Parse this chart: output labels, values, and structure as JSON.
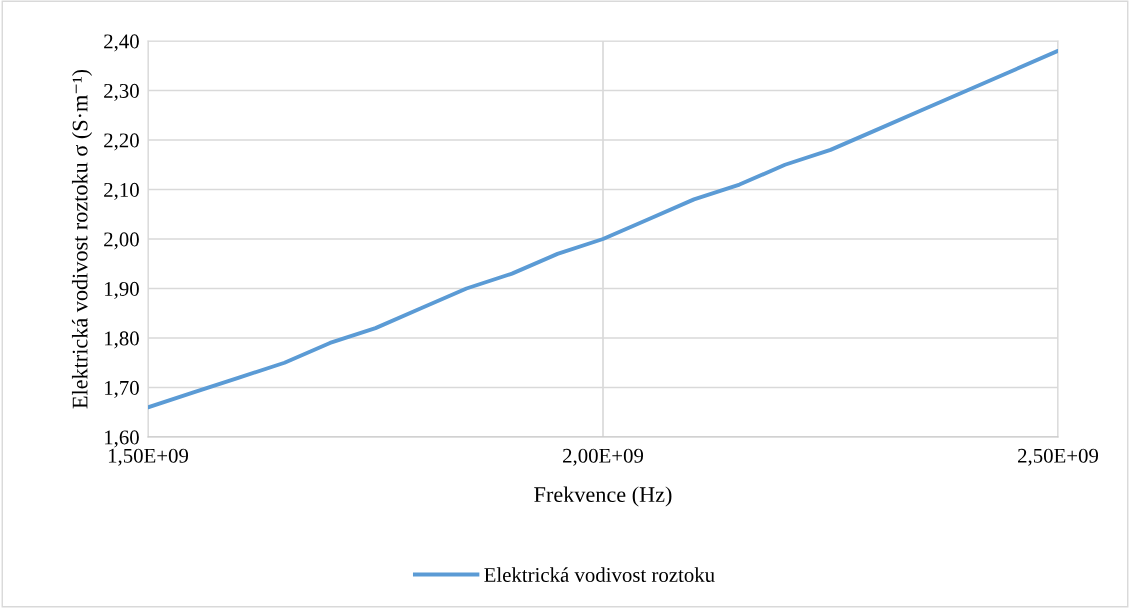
{
  "chart_data": {
    "type": "line",
    "xlabel": "Frekvence (Hz)",
    "ylabel": "Elektrická vodivost roztoku σ (S·m⁻¹)",
    "categories": [
      "1,50E+09",
      null,
      null,
      null,
      null,
      null,
      null,
      null,
      null,
      null,
      "2,00E+09",
      null,
      null,
      null,
      null,
      null,
      null,
      null,
      null,
      null,
      "2,50E+09"
    ],
    "series": [
      {
        "name": "Elektrická vodivost roztoku",
        "color": "#5b9bd5",
        "values": [
          1.66,
          1.69,
          1.72,
          1.75,
          1.79,
          1.82,
          1.86,
          1.9,
          1.93,
          1.97,
          2.0,
          2.04,
          2.08,
          2.11,
          2.15,
          2.18,
          2.22,
          2.26,
          2.3,
          2.34,
          2.38
        ]
      }
    ],
    "ylim": [
      1.6,
      2.4
    ],
    "yticks": [
      {
        "value": 1.6,
        "label": "1,60"
      },
      {
        "value": 1.7,
        "label": "1,70"
      },
      {
        "value": 1.8,
        "label": "1,80"
      },
      {
        "value": 1.9,
        "label": "1,90"
      },
      {
        "value": 2.0,
        "label": "2,00"
      },
      {
        "value": 2.1,
        "label": "2,10"
      },
      {
        "value": 2.2,
        "label": "2,20"
      },
      {
        "value": 2.3,
        "label": "2,30"
      },
      {
        "value": 2.4,
        "label": "2,40"
      }
    ],
    "grid": true,
    "legend": "bottom",
    "marker": "none",
    "line_style": "solid"
  }
}
